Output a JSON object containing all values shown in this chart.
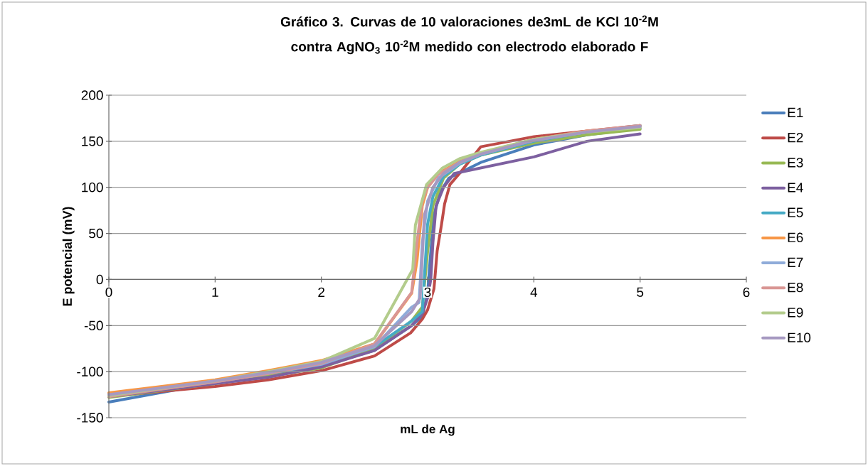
{
  "chart_data": {
    "type": "line",
    "title": "Gráfico 3. Curvas  de 10 valoraciones de3mL de KCl 10$^{-2}$M contra  AgNO$_{3}$ 10$^{-2}$M medido con electrodo  elaborado F",
    "xlabel": "mL de Ag",
    "ylabel": "E potencial (mV)",
    "xlim": [
      0,
      6
    ],
    "xticks": [
      0,
      1,
      2,
      3,
      4,
      5,
      6
    ],
    "ylim": [
      -150,
      200
    ],
    "yticks": [
      -150,
      -100,
      -50,
      0,
      50,
      100,
      150,
      200
    ],
    "grid": "y",
    "legend": "right",
    "marker": "none",
    "line_style": "solid",
    "series": [
      {
        "name": "E1",
        "color": "#4a7ebb",
        "x": [
          0,
          1,
          1.5,
          2,
          2.5,
          2.85,
          2.95,
          3.0,
          3.03,
          3.06,
          3.12,
          3.2,
          3.5,
          4,
          4.5,
          5
        ],
        "values": [
          -133,
          -112,
          -103,
          -93,
          -77,
          -50,
          -40,
          -15,
          30,
          70,
          95,
          110,
          127,
          146,
          157,
          164
        ]
      },
      {
        "name": "E2",
        "color": "#be4b48",
        "x": [
          0,
          1,
          1.5,
          2,
          2.5,
          2.84,
          2.95,
          3.0,
          3.06,
          3.09,
          3.13,
          3.16,
          3.21,
          3.3,
          3.5,
          4,
          4.5,
          5
        ],
        "values": [
          -127,
          -116,
          -109,
          -99,
          -83,
          -58,
          -43,
          -33,
          -10,
          31,
          59,
          82,
          103,
          115,
          144,
          155,
          161,
          167
        ]
      },
      {
        "name": "E3",
        "color": "#98b954",
        "x": [
          0,
          1,
          1.5,
          2,
          2.5,
          2.85,
          2.95,
          3.0,
          3.05,
          3.15,
          3.3,
          3.5,
          4,
          4.5,
          5
        ],
        "values": [
          -128,
          -113,
          -105,
          -96,
          -75,
          -45,
          -30,
          30,
          80,
          110,
          125,
          135,
          148,
          157,
          163
        ]
      },
      {
        "name": "E4",
        "color": "#7d60a0",
        "x": [
          0,
          1,
          1.5,
          2,
          2.5,
          2.85,
          2.95,
          3.0,
          3.03,
          3.05,
          3.08,
          3.15,
          3.25,
          3.5,
          4,
          4.5,
          5
        ],
        "values": [
          -127,
          -113,
          -106,
          -95,
          -77,
          -50,
          -37,
          -20,
          0,
          40,
          80,
          100,
          115,
          121,
          133,
          150,
          158
        ]
      },
      {
        "name": "E5",
        "color": "#46aac5",
        "x": [
          0,
          1,
          1.5,
          2,
          2.5,
          2.85,
          2.95,
          3.0,
          3.05,
          3.15,
          3.3,
          3.5,
          4,
          4.5,
          5
        ],
        "values": [
          -124,
          -110,
          -101,
          -91,
          -73,
          -45,
          -35,
          60,
          90,
          112,
          125,
          135,
          150,
          160,
          167
        ]
      },
      {
        "name": "E6",
        "color": "#f79646",
        "x": [
          0,
          1,
          1.5,
          2,
          2.5,
          2.85,
          2.9,
          2.95,
          3.0,
          3.1,
          3.3,
          3.5,
          4,
          4.5,
          5
        ],
        "values": [
          -123,
          -109,
          -99,
          -88,
          -70,
          -15,
          20,
          80,
          100,
          115,
          128,
          137,
          152,
          161,
          166
        ]
      },
      {
        "name": "E7",
        "color": "#8fabd9",
        "x": [
          0,
          1,
          1.5,
          2,
          2.5,
          2.85,
          2.92,
          2.95,
          3.0,
          3.1,
          3.3,
          3.5,
          4,
          4.5,
          5
        ],
        "values": [
          -126,
          -111,
          -102,
          -92,
          -73,
          -30,
          -25,
          40,
          85,
          110,
          126,
          136,
          151,
          160,
          166
        ]
      },
      {
        "name": "E8",
        "color": "#d99694",
        "x": [
          0,
          1,
          1.5,
          2,
          2.5,
          2.85,
          2.9,
          2.95,
          3.0,
          3.1,
          3.3,
          3.5,
          4,
          4.5,
          5
        ],
        "values": [
          -127,
          -111,
          -102,
          -91,
          -70,
          -14,
          40,
          85,
          100,
          114,
          127,
          137,
          152,
          161,
          167
        ]
      },
      {
        "name": "E9",
        "color": "#b3cc8c",
        "x": [
          0,
          1,
          1.5,
          2,
          2.5,
          2.86,
          2.885,
          2.99,
          3.14,
          3.3,
          3.5,
          4,
          4.5,
          5
        ],
        "values": [
          -126,
          -110,
          -100,
          -89,
          -64,
          11,
          59,
          103,
          121,
          131,
          138,
          152,
          160,
          165
        ]
      },
      {
        "name": "E10",
        "color": "#a699c1",
        "x": [
          0,
          1,
          1.5,
          2,
          2.5,
          2.85,
          2.93,
          2.97,
          3.05,
          3.15,
          3.3,
          3.5,
          4,
          4.5,
          5
        ],
        "values": [
          -125,
          -110,
          -101,
          -90,
          -72,
          -35,
          -20,
          70,
          100,
          115,
          127,
          136,
          151,
          160,
          166
        ]
      }
    ]
  }
}
